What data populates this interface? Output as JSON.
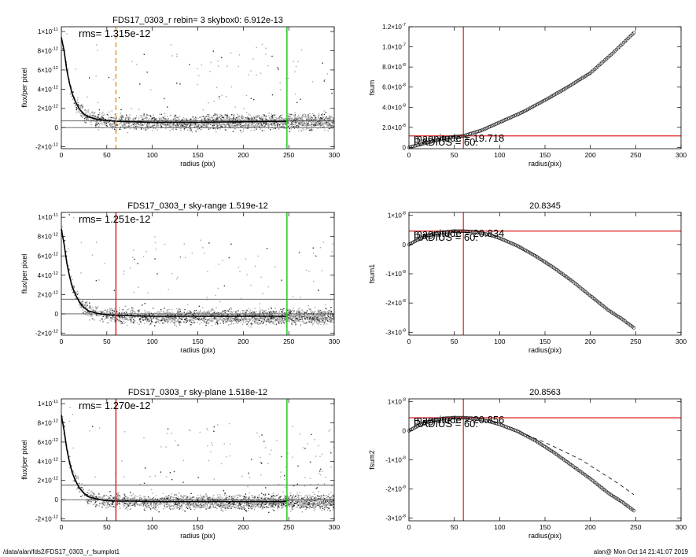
{
  "footer": {
    "path": "/data/alan/fds2/FDS17_0303_r_fsumplot1",
    "stamp": "alan@  Mon Oct 14 21:41:07 2019"
  },
  "colors": {
    "red_line": "#e02020",
    "green_line": "#22cc22",
    "orange_dash": "#e8962a",
    "scatter_light": "#a8a8a8",
    "scatter_dark": "#303030"
  },
  "chart_data": [
    {
      "id": "left1",
      "type": "scatter",
      "title": "FDS17_0303_r rebin= 3    skybox0:  6.912e-13",
      "xlabel": "radius (pix)",
      "ylabel": "flux/per pixel",
      "xlim": [
        0,
        300
      ],
      "ylim": [
        -2.2e-12,
        1.05e-11
      ],
      "xticks": [
        0,
        50,
        100,
        150,
        200,
        250,
        300
      ],
      "yticks": [
        {
          "v": 1e-11,
          "m": "1×10",
          "e": "-11"
        },
        {
          "v": 8e-12,
          "m": "8×10",
          "e": "-12"
        },
        {
          "v": 6e-12,
          "m": "6×10",
          "e": "-12"
        },
        {
          "v": 4e-12,
          "m": "4×10",
          "e": "-12"
        },
        {
          "v": 2e-12,
          "m": "2×10",
          "e": "-12"
        },
        {
          "v": 0,
          "m": "0",
          "e": ""
        },
        {
          "v": -2e-12,
          "m": "-2×10",
          "e": "-12"
        }
      ],
      "annotation": "rms= 1.315e-12",
      "hlines": [
        0,
        6.9e-13
      ],
      "vline_marker": {
        "x": 60,
        "style": "dashed",
        "color": "orange"
      },
      "vline_edge": {
        "x": 248,
        "color": "green"
      },
      "profile": [
        [
          0,
          9.4e-12
        ],
        [
          3,
          8e-12
        ],
        [
          6,
          6e-12
        ],
        [
          9,
          4.6e-12
        ],
        [
          12,
          3.5e-12
        ],
        [
          16,
          2.6e-12
        ],
        [
          20,
          1.9e-12
        ],
        [
          25,
          1.4e-12
        ],
        [
          30,
          1.1e-12
        ],
        [
          40,
          8.5e-13
        ],
        [
          50,
          7.5e-13
        ],
        [
          60,
          6.5e-13
        ],
        [
          80,
          6e-13
        ],
        [
          100,
          5.5e-13
        ],
        [
          150,
          5.5e-13
        ],
        [
          200,
          6e-13
        ],
        [
          248,
          6.5e-13
        ]
      ],
      "seed": 11
    },
    {
      "id": "right1",
      "type": "line",
      "title": "",
      "xlabel": "radius(pix)",
      "ylabel": "fsum",
      "xlim": [
        0,
        300
      ],
      "ylim": [
        -1.2e-09,
        1.2e-07
      ],
      "xticks": [
        0,
        50,
        100,
        150,
        200,
        250,
        300
      ],
      "yticks": [
        {
          "v": 1.2e-07,
          "m": "1.2×10",
          "e": "-7"
        },
        {
          "v": 1e-07,
          "m": "1.0×10",
          "e": "-7"
        },
        {
          "v": 8e-08,
          "m": "8.0×10",
          "e": "-8"
        },
        {
          "v": 6e-08,
          "m": "6.0×10",
          "e": "-8"
        },
        {
          "v": 4e-08,
          "m": "4.0×10",
          "e": "-8"
        },
        {
          "v": 2e-08,
          "m": "2.0×10",
          "e": "-8"
        },
        {
          "v": 0,
          "m": "0",
          "e": ""
        }
      ],
      "labels": [
        "RADIUS = 60.",
        "magnitude = 19.718"
      ],
      "hline": 1.15e-08,
      "vline": 60,
      "points": [
        [
          0,
          0
        ],
        [
          5,
          1.2e-09
        ],
        [
          10,
          2.4e-09
        ],
        [
          20,
          4.8e-09
        ],
        [
          30,
          7.2e-09
        ],
        [
          40,
          9.5e-09
        ],
        [
          50,
          1.05e-08
        ],
        [
          60,
          1.15e-08
        ],
        [
          80,
          1.7e-08
        ],
        [
          100,
          2.5e-08
        ],
        [
          125,
          3.5e-08
        ],
        [
          150,
          4.7e-08
        ],
        [
          175,
          6e-08
        ],
        [
          200,
          7.4e-08
        ],
        [
          225,
          9.4e-08
        ],
        [
          248,
          1.14e-07
        ]
      ]
    },
    {
      "id": "left2",
      "type": "scatter",
      "title": "FDS17_0303_r sky-range  1.519e-12",
      "xlabel": "radius (pix)",
      "ylabel": "flux/per pixel",
      "xlim": [
        0,
        300
      ],
      "ylim": [
        -2.2e-12,
        1.05e-11
      ],
      "xticks": [
        0,
        50,
        100,
        150,
        200,
        250,
        300
      ],
      "yticks": [
        {
          "v": 1e-11,
          "m": "1×10",
          "e": "-11"
        },
        {
          "v": 8e-12,
          "m": "8×10",
          "e": "-12"
        },
        {
          "v": 6e-12,
          "m": "6×10",
          "e": "-12"
        },
        {
          "v": 4e-12,
          "m": "4×10",
          "e": "-12"
        },
        {
          "v": 2e-12,
          "m": "2×10",
          "e": "-12"
        },
        {
          "v": 0,
          "m": "0",
          "e": ""
        },
        {
          "v": -2e-12,
          "m": "-2×10",
          "e": "-12"
        }
      ],
      "annotation": "rms= 1.251e-12",
      "hlines": [
        0,
        1.519e-12
      ],
      "vline_marker": {
        "x": 60,
        "style": "solid",
        "color": "red"
      },
      "vline_edge": {
        "x": 248,
        "color": "green"
      },
      "profile": [
        [
          0,
          8.8e-12
        ],
        [
          3,
          7.2e-12
        ],
        [
          6,
          5.3e-12
        ],
        [
          9,
          3.9e-12
        ],
        [
          12,
          2.8e-12
        ],
        [
          16,
          1.9e-12
        ],
        [
          20,
          1.2e-12
        ],
        [
          25,
          6.5e-13
        ],
        [
          30,
          3e-13
        ],
        [
          40,
          5e-14
        ],
        [
          50,
          -1e-13
        ],
        [
          60,
          -1.5e-13
        ],
        [
          80,
          -2e-13
        ],
        [
          100,
          -2.5e-13
        ],
        [
          150,
          -2.5e-13
        ],
        [
          200,
          -2.5e-13
        ],
        [
          248,
          -2.5e-13
        ]
      ],
      "seed": 23
    },
    {
      "id": "right2",
      "type": "line",
      "title": "20.8345",
      "xlabel": "radius(pix)",
      "ylabel": "fsum1",
      "xlim": [
        0,
        300
      ],
      "ylim": [
        -3.1e-08,
        1.1e-08
      ],
      "xticks": [
        0,
        50,
        100,
        150,
        200,
        250,
        300
      ],
      "yticks": [
        {
          "v": 1e-08,
          "m": "1×10",
          "e": "-8"
        },
        {
          "v": 0,
          "m": "0",
          "e": ""
        },
        {
          "v": -1e-08,
          "m": "-1×10",
          "e": "-8"
        },
        {
          "v": -2e-08,
          "m": "-2×10",
          "e": "-8"
        },
        {
          "v": -3e-08,
          "m": "-3×10",
          "e": "-8"
        }
      ],
      "labels": [
        "RADIUS = 60.",
        "magnitude = 20.834"
      ],
      "hline": 4.6e-09,
      "vline": 60,
      "points": [
        [
          0,
          0
        ],
        [
          10,
          1.7e-09
        ],
        [
          20,
          3e-09
        ],
        [
          30,
          3.8e-09
        ],
        [
          40,
          4.3e-09
        ],
        [
          50,
          4.6e-09
        ],
        [
          60,
          4.6e-09
        ],
        [
          70,
          4.4e-09
        ],
        [
          80,
          3.9e-09
        ],
        [
          90,
          3.2e-09
        ],
        [
          100,
          2.2e-09
        ],
        [
          120,
          -5e-10
        ],
        [
          140,
          -4e-09
        ],
        [
          160,
          -8e-09
        ],
        [
          180,
          -1.25e-08
        ],
        [
          200,
          -1.75e-08
        ],
        [
          220,
          -2.25e-08
        ],
        [
          235,
          -2.55e-08
        ],
        [
          248,
          -2.85e-08
        ]
      ]
    },
    {
      "id": "left3",
      "type": "scatter",
      "title": "FDS17_0303_r sky-plane  1.518e-12",
      "xlabel": "radius (pix)",
      "ylabel": "flux/per pixel",
      "xlim": [
        0,
        300
      ],
      "ylim": [
        -2.2e-12,
        1.05e-11
      ],
      "xticks": [
        0,
        50,
        100,
        150,
        200,
        250,
        300
      ],
      "yticks": [
        {
          "v": 1e-11,
          "m": "1×10",
          "e": "-11"
        },
        {
          "v": 8e-12,
          "m": "8×10",
          "e": "-12"
        },
        {
          "v": 6e-12,
          "m": "6×10",
          "e": "-12"
        },
        {
          "v": 4e-12,
          "m": "4×10",
          "e": "-12"
        },
        {
          "v": 2e-12,
          "m": "2×10",
          "e": "-12"
        },
        {
          "v": 0,
          "m": "0",
          "e": ""
        },
        {
          "v": -2e-12,
          "m": "-2×10",
          "e": "-12"
        }
      ],
      "annotation": "rms= 1.270e-12",
      "hlines": [
        0,
        1.518e-12
      ],
      "vline_marker": {
        "x": 60,
        "style": "solid",
        "color": "red"
      },
      "vline_edge": {
        "x": 248,
        "color": "green"
      },
      "profile": [
        [
          0,
          8.8e-12
        ],
        [
          3,
          7.2e-12
        ],
        [
          6,
          5.3e-12
        ],
        [
          9,
          3.9e-12
        ],
        [
          12,
          2.8e-12
        ],
        [
          16,
          1.9e-12
        ],
        [
          20,
          1.2e-12
        ],
        [
          25,
          6.5e-13
        ],
        [
          30,
          3e-13
        ],
        [
          40,
          5e-14
        ],
        [
          50,
          -1e-13
        ],
        [
          60,
          -1.5e-13
        ],
        [
          80,
          -1.5e-13
        ],
        [
          100,
          -2e-13
        ],
        [
          150,
          -2e-13
        ],
        [
          200,
          -2e-13
        ],
        [
          248,
          -2e-13
        ]
      ],
      "seed": 37
    },
    {
      "id": "right3",
      "type": "line",
      "title": "20.8563",
      "xlabel": "radius(pix)",
      "ylabel": "fsum2",
      "xlim": [
        0,
        300
      ],
      "ylim": [
        -3.1e-08,
        1.1e-08
      ],
      "xticks": [
        0,
        50,
        100,
        150,
        200,
        250,
        300
      ],
      "yticks": [
        {
          "v": 1e-08,
          "m": "1×10",
          "e": "-8"
        },
        {
          "v": 0,
          "m": "0",
          "e": ""
        },
        {
          "v": -1e-08,
          "m": "-1×10",
          "e": "-8"
        },
        {
          "v": -2e-08,
          "m": "-2×10",
          "e": "-8"
        },
        {
          "v": -3e-08,
          "m": "-3×10",
          "e": "-8"
        }
      ],
      "labels": [
        "RADIUS = 60.",
        "magnitude = 20.856"
      ],
      "hline": 4.5e-09,
      "vline": 60,
      "points": [
        [
          0,
          0
        ],
        [
          10,
          1.7e-09
        ],
        [
          20,
          3e-09
        ],
        [
          30,
          3.8e-09
        ],
        [
          40,
          4.3e-09
        ],
        [
          50,
          4.5e-09
        ],
        [
          60,
          4.5e-09
        ],
        [
          70,
          4.3e-09
        ],
        [
          80,
          3.8e-09
        ],
        [
          90,
          3.1e-09
        ],
        [
          100,
          2.2e-09
        ],
        [
          120,
          -2e-10
        ],
        [
          140,
          -3.5e-09
        ],
        [
          160,
          -7.5e-09
        ],
        [
          180,
          -1.2e-08
        ],
        [
          200,
          -1.65e-08
        ],
        [
          220,
          -2.15e-08
        ],
        [
          235,
          -2.45e-08
        ],
        [
          248,
          -2.75e-08
        ]
      ],
      "dashed": [
        [
          130,
          -1.5e-09
        ],
        [
          150,
          -4e-09
        ],
        [
          170,
          -7e-09
        ],
        [
          190,
          -1e-08
        ],
        [
          210,
          -1.4e-08
        ],
        [
          230,
          -1.8e-08
        ],
        [
          248,
          -2.2e-08
        ]
      ]
    }
  ]
}
